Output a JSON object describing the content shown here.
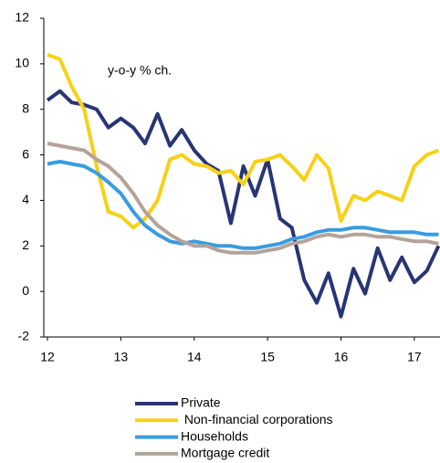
{
  "chart_data": {
    "type": "line",
    "annotation": "y-o-y % ch.",
    "x": [
      12,
      12.17,
      12.33,
      12.5,
      12.67,
      12.83,
      13,
      13.17,
      13.33,
      13.5,
      13.67,
      13.83,
      14,
      14.17,
      14.33,
      14.5,
      14.67,
      14.83,
      15,
      15.17,
      15.33,
      15.5,
      15.67,
      15.83,
      16,
      16.17,
      16.33,
      16.5,
      16.67,
      16.83,
      17,
      17.17,
      17.33
    ],
    "series": [
      {
        "name": "Private",
        "color": "#283574",
        "values": [
          8.4,
          8.8,
          8.3,
          8.2,
          8.0,
          7.2,
          7.6,
          7.2,
          6.5,
          7.8,
          6.4,
          7.1,
          6.2,
          5.6,
          5.3,
          3.0,
          5.5,
          4.2,
          5.8,
          3.2,
          2.8,
          0.5,
          -0.5,
          0.8,
          -1.1,
          1.0,
          -0.1,
          1.9,
          0.5,
          1.5,
          0.4,
          0.9,
          2.0
        ]
      },
      {
        "name": " Non-financial corporations",
        "color": "#f7d117",
        "values": [
          10.4,
          10.2,
          9.0,
          8.0,
          5.5,
          3.5,
          3.3,
          2.8,
          3.2,
          4.0,
          5.8,
          6.0,
          5.6,
          5.5,
          5.2,
          5.3,
          4.7,
          5.7,
          5.8,
          6.0,
          5.5,
          4.9,
          6.0,
          5.4,
          3.1,
          4.2,
          4.0,
          4.4,
          4.2,
          4.0,
          5.5,
          6.0,
          6.2
        ]
      },
      {
        "name": "Households",
        "color": "#3a9be0",
        "values": [
          5.6,
          5.7,
          5.6,
          5.5,
          5.2,
          4.8,
          4.3,
          3.5,
          2.9,
          2.5,
          2.2,
          2.1,
          2.2,
          2.1,
          2.0,
          2.0,
          1.9,
          1.9,
          2.0,
          2.1,
          2.3,
          2.4,
          2.6,
          2.7,
          2.7,
          2.8,
          2.8,
          2.7,
          2.6,
          2.6,
          2.6,
          2.5,
          2.5
        ]
      },
      {
        "name": "Mortgage credit",
        "color": "#b3a39a",
        "values": [
          6.5,
          6.4,
          6.3,
          6.2,
          5.8,
          5.5,
          5.0,
          4.3,
          3.5,
          2.9,
          2.5,
          2.2,
          2.0,
          2.0,
          1.8,
          1.7,
          1.7,
          1.7,
          1.8,
          1.9,
          2.1,
          2.2,
          2.4,
          2.5,
          2.4,
          2.5,
          2.5,
          2.4,
          2.4,
          2.3,
          2.2,
          2.2,
          2.1
        ]
      }
    ],
    "xlim": [
      11.95,
      17.35
    ],
    "xticks": [
      12,
      13,
      14,
      15,
      16,
      17
    ],
    "ylim": [
      -2,
      12
    ],
    "yticks": [
      -2,
      0,
      2,
      4,
      6,
      8,
      10,
      12
    ],
    "grid": false
  }
}
